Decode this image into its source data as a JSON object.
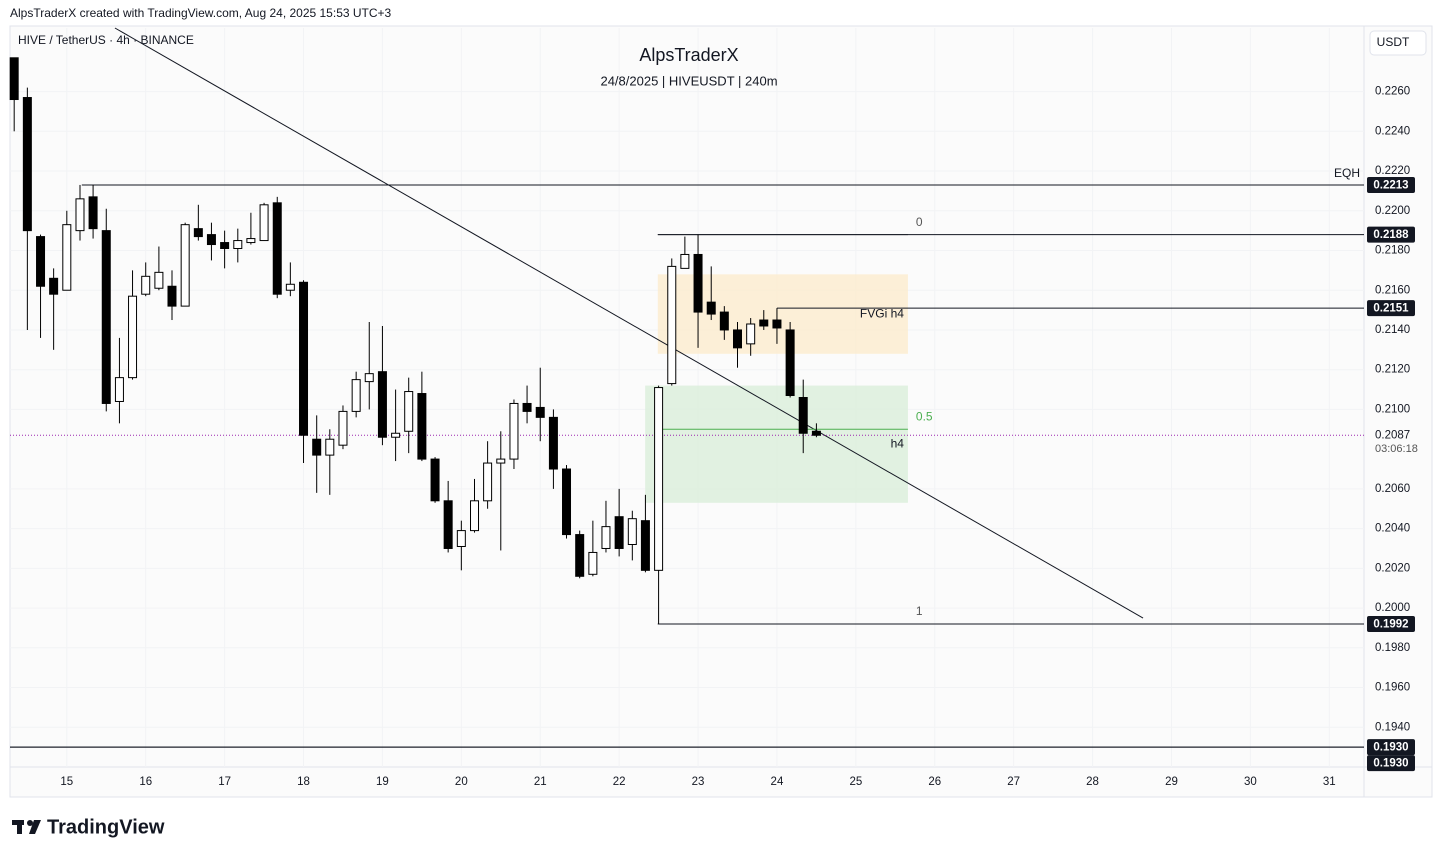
{
  "chart_data": {
    "type": "candlestick",
    "watermark": "AlpsTraderX created with TradingView.com, Aug 24, 2025 15:53 UTC+3",
    "symbol": "HIVE / TetherUS · 4h · BINANCE",
    "title": "AlpsTraderX",
    "subtitle": "24/8/2025 | HIVEUSDT | 240m",
    "currency_button": "USDT",
    "logo": "TradingView",
    "up_color": "#ffffff",
    "down_color": "#000000",
    "wick_color": "#000000",
    "grid": true,
    "xlim": [
      14.28,
      31.44
    ],
    "xticks": [
      15,
      16,
      17,
      18,
      19,
      20,
      21,
      22,
      23,
      24,
      25,
      26,
      27,
      28,
      29,
      30,
      31
    ],
    "ylim": [
      0.192,
      0.2292
    ],
    "yticks": [
      {
        "value": 0.194,
        "label": "0.1940"
      },
      {
        "value": 0.196,
        "label": "0.1960"
      },
      {
        "value": 0.198,
        "label": "0.1980"
      },
      {
        "value": 0.2,
        "label": "0.2000"
      },
      {
        "value": 0.202,
        "label": "0.2020"
      },
      {
        "value": 0.204,
        "label": "0.2040"
      },
      {
        "value": 0.206,
        "label": "0.2060"
      },
      {
        "value": 0.21,
        "label": "0.2100"
      },
      {
        "value": 0.212,
        "label": "0.2120"
      },
      {
        "value": 0.214,
        "label": "0.2140"
      },
      {
        "value": 0.216,
        "label": "0.2160"
      },
      {
        "value": 0.218,
        "label": "0.2180"
      },
      {
        "value": 0.22,
        "label": "0.2200"
      },
      {
        "value": 0.222,
        "label": "0.2220"
      },
      {
        "value": 0.224,
        "label": "0.2240"
      },
      {
        "value": 0.226,
        "label": "0.2260"
      }
    ],
    "x": [
      14.333,
      14.5,
      14.667,
      14.833,
      15,
      15.167,
      15.333,
      15.5,
      15.667,
      15.833,
      16,
      16.167,
      16.333,
      16.5,
      16.667,
      16.833,
      17,
      17.167,
      17.333,
      17.5,
      17.667,
      17.833,
      18,
      18.167,
      18.333,
      18.5,
      18.667,
      18.833,
      19,
      19.167,
      19.333,
      19.5,
      19.667,
      19.833,
      20,
      20.167,
      20.333,
      20.5,
      20.667,
      20.833,
      21,
      21.167,
      21.333,
      21.5,
      21.667,
      21.833,
      22,
      22.167,
      22.333,
      22.5,
      22.667,
      22.833,
      23,
      23.167,
      23.333,
      23.5,
      23.667,
      23.833,
      24,
      24.167,
      24.333,
      24.5
    ],
    "open": [
      0.2277,
      0.2257,
      0.2187,
      0.2166,
      0.216,
      0.219,
      0.2207,
      0.219,
      0.2104,
      0.2116,
      0.2158,
      0.2161,
      0.2162,
      0.2152,
      0.2191,
      0.2188,
      0.2184,
      0.2181,
      0.2184,
      0.2185,
      0.2204,
      0.216,
      0.2164,
      0.2085,
      0.2077,
      0.2082,
      0.2099,
      0.2114,
      0.2119,
      0.2086,
      0.2089,
      0.2108,
      0.2075,
      0.2054,
      0.2031,
      0.2039,
      0.2054,
      0.2073,
      0.2075,
      0.2103,
      0.2101,
      0.2096,
      0.207,
      0.2037,
      0.2017,
      0.203,
      0.2046,
      0.2032,
      0.2044,
      0.2019,
      0.2113,
      0.2171,
      0.2178,
      0.2154,
      0.2149,
      0.214,
      0.2133,
      0.2145,
      0.2145,
      0.214,
      0.2106,
      0.2089
    ],
    "high": [
      0.2277,
      0.2262,
      0.2188,
      0.2171,
      0.22,
      0.2213,
      0.2213,
      0.2201,
      0.2136,
      0.217,
      0.2174,
      0.2182,
      0.217,
      0.2194,
      0.2203,
      0.2194,
      0.219,
      0.2191,
      0.2199,
      0.2204,
      0.2207,
      0.2174,
      0.2165,
      0.2097,
      0.209,
      0.2102,
      0.2119,
      0.2144,
      0.2142,
      0.211,
      0.2116,
      0.2119,
      0.2076,
      0.2064,
      0.2044,
      0.2065,
      0.2084,
      0.2089,
      0.2105,
      0.2112,
      0.2121,
      0.21,
      0.2072,
      0.2039,
      0.2044,
      0.2054,
      0.206,
      0.2049,
      0.2057,
      0.2112,
      0.2176,
      0.2187,
      0.2188,
      0.2172,
      0.2152,
      0.2144,
      0.2146,
      0.215,
      0.2151,
      0.2144,
      0.2115,
      0.2093
    ],
    "low": [
      0.224,
      0.214,
      0.2136,
      0.213,
      0.216,
      0.2185,
      0.2186,
      0.2099,
      0.2093,
      0.2115,
      0.2157,
      0.216,
      0.2145,
      0.2152,
      0.2185,
      0.2175,
      0.2171,
      0.2174,
      0.2183,
      0.2185,
      0.2156,
      0.2157,
      0.2073,
      0.2058,
      0.2057,
      0.208,
      0.2096,
      0.21,
      0.2082,
      0.2074,
      0.2078,
      0.2074,
      0.2053,
      0.2028,
      0.2019,
      0.2038,
      0.205,
      0.2029,
      0.207,
      0.2093,
      0.2084,
      0.206,
      0.2035,
      0.2015,
      0.2016,
      0.2028,
      0.2026,
      0.2024,
      0.2018,
      0.1992,
      0.2112,
      0.2171,
      0.2131,
      0.2145,
      0.2135,
      0.2121,
      0.2127,
      0.214,
      0.2133,
      0.2106,
      0.2078,
      0.2086
    ],
    "close": [
      0.2256,
      0.219,
      0.2162,
      0.2158,
      0.2193,
      0.2206,
      0.2191,
      0.2103,
      0.2116,
      0.2157,
      0.2167,
      0.2169,
      0.2152,
      0.2193,
      0.2187,
      0.2183,
      0.2181,
      0.2185,
      0.2186,
      0.2203,
      0.2158,
      0.2163,
      0.2087,
      0.2077,
      0.2085,
      0.2099,
      0.2115,
      0.2118,
      0.2086,
      0.2088,
      0.2109,
      0.2075,
      0.2054,
      0.203,
      0.2039,
      0.2054,
      0.2073,
      0.2075,
      0.2103,
      0.2099,
      0.2096,
      0.207,
      0.2037,
      0.2016,
      0.2028,
      0.2041,
      0.203,
      0.2045,
      0.2019,
      0.2111,
      0.2172,
      0.2178,
      0.2149,
      0.2148,
      0.214,
      0.2131,
      0.2143,
      0.2142,
      0.2141,
      0.2107,
      0.2088,
      0.2087
    ],
    "boxes": [
      {
        "x0": 22.49,
        "x1": 25.66,
        "y0": 0.2128,
        "y1": 0.2168,
        "color": "#fcecd0"
      },
      {
        "x0": 22.33,
        "x1": 25.66,
        "y0": 0.2053,
        "y1": 0.2112,
        "color": "#dcefdc",
        "text": "h4"
      }
    ],
    "levels": [
      {
        "y": 0.2213,
        "x0": 15.19,
        "text": "EQH",
        "price_label": 0.2213
      },
      {
        "y": 0.2188,
        "x0": 22.49,
        "price_label": 0.2188
      },
      {
        "y": 0.2151,
        "x0": 24.0,
        "text": "FVGi h4",
        "label_x": 25.66,
        "price_label": 0.2151
      },
      {
        "y": 0.1992,
        "x0": 22.49,
        "price_label": 0.1992
      },
      {
        "y": 0.193,
        "x0": 14.28,
        "price_label": {
          "value": 0.193,
          "label": "0.1930"
        }
      },
      {
        "y": 0.193,
        "x0": 14.28,
        "price_label": {
          "value": 0.193,
          "label": "0.1930"
        }
      }
    ],
    "fib": {
      "x0": 22.49,
      "x1": 25.66,
      "color": "#555555",
      "levels": [
        {
          "ratio": 0,
          "y": 0.2188
        },
        {
          "ratio": 0.5,
          "y": 0.209,
          "color": "#4caf50"
        },
        {
          "ratio": 1,
          "y": 0.1992
        }
      ]
    },
    "trendline": {
      "x": [
        15.61,
        28.64
      ],
      "y": [
        0.2292,
        0.1995
      ]
    },
    "last_price": {
      "value": 0.2087,
      "countdown": "03:06:18",
      "color": "#9c27b0"
    }
  }
}
